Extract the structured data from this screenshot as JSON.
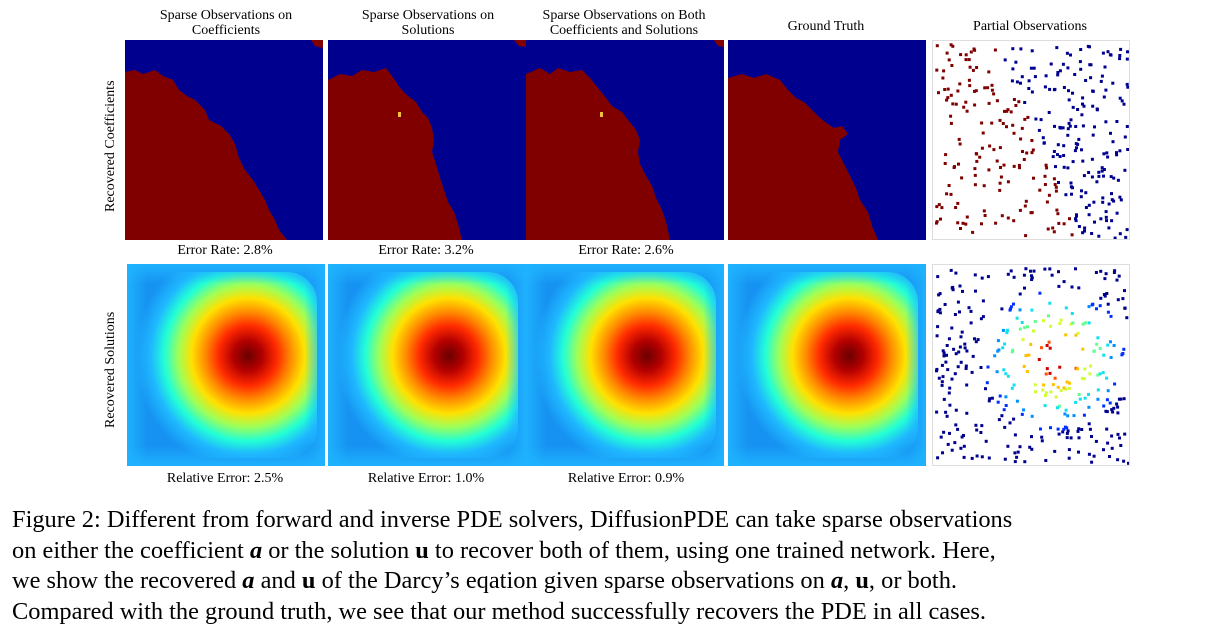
{
  "columns": [
    {
      "title_line1": "Sparse Observations on",
      "title_line2": "Coefficients"
    },
    {
      "title_line1": "Sparse Observations on",
      "title_line2": "Solutions"
    },
    {
      "title_line1": "Sparse Observations on Both",
      "title_line2": "Coefficients and Solutions"
    },
    {
      "title_line1": "Ground Truth",
      "title_line2": ""
    },
    {
      "title_line1": "Partial Observations",
      "title_line2": ""
    }
  ],
  "rows": {
    "coefficients_label": "Recovered Coefficients",
    "solutions_label": "Recovered Solutions"
  },
  "metrics": {
    "error_rates": [
      "Error Rate: 2.8%",
      "Error Rate: 3.2%",
      "Error Rate: 2.6%"
    ],
    "relative_errors": [
      "Relative Error: 2.5%",
      "Relative Error: 1.0%",
      "Relative Error: 0.9%"
    ]
  },
  "colors": {
    "coef_high": "#800000",
    "coef_low": "#00008f",
    "heat_outer": "#00a0ff",
    "heat_peak": "#7f0000"
  },
  "caption": {
    "line1": "Figure 2: Different from forward and inverse PDE solvers, DiffusionPDE can take sparse observations",
    "line2_a": "on either the coefficient ",
    "sym_a": "a",
    "line2_b": " or the solution ",
    "sym_u": "u",
    "line2_c": " to recover both of them, using one trained network. Here,",
    "line3_a": "we show the recovered ",
    "line3_b": " and ",
    "line3_c": " of the Darcy’s eqation given sparse observations on ",
    "line3_d": ", ",
    "line3_e": ", or both.",
    "line4": "Compared with the ground truth, we see that our method successfully recovers the PDE in all cases."
  }
}
